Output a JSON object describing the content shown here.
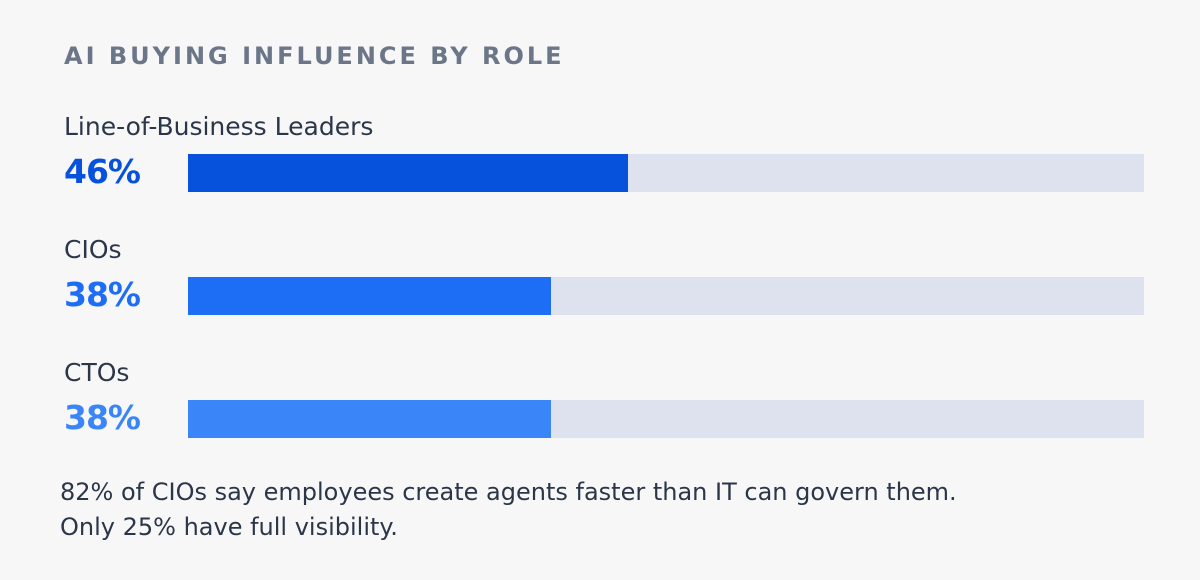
{
  "title": "AI BUYING INFLUENCE BY ROLE",
  "chart_data": {
    "type": "bar",
    "orientation": "horizontal",
    "categories": [
      "Line-of-Business Leaders",
      "CIOs",
      "CTOs"
    ],
    "values": [
      46,
      38,
      38
    ],
    "value_labels": [
      "46%",
      "38%",
      "38%"
    ],
    "xlim": [
      0,
      100
    ],
    "colors": [
      "#0652dd",
      "#1d6ef5",
      "#3a85f7"
    ],
    "track_color": "#dde2ee"
  },
  "footnote": {
    "line1": "82% of CIOs say employees create agents faster than IT can govern them.",
    "line2": "Only 25% have full visibility."
  }
}
